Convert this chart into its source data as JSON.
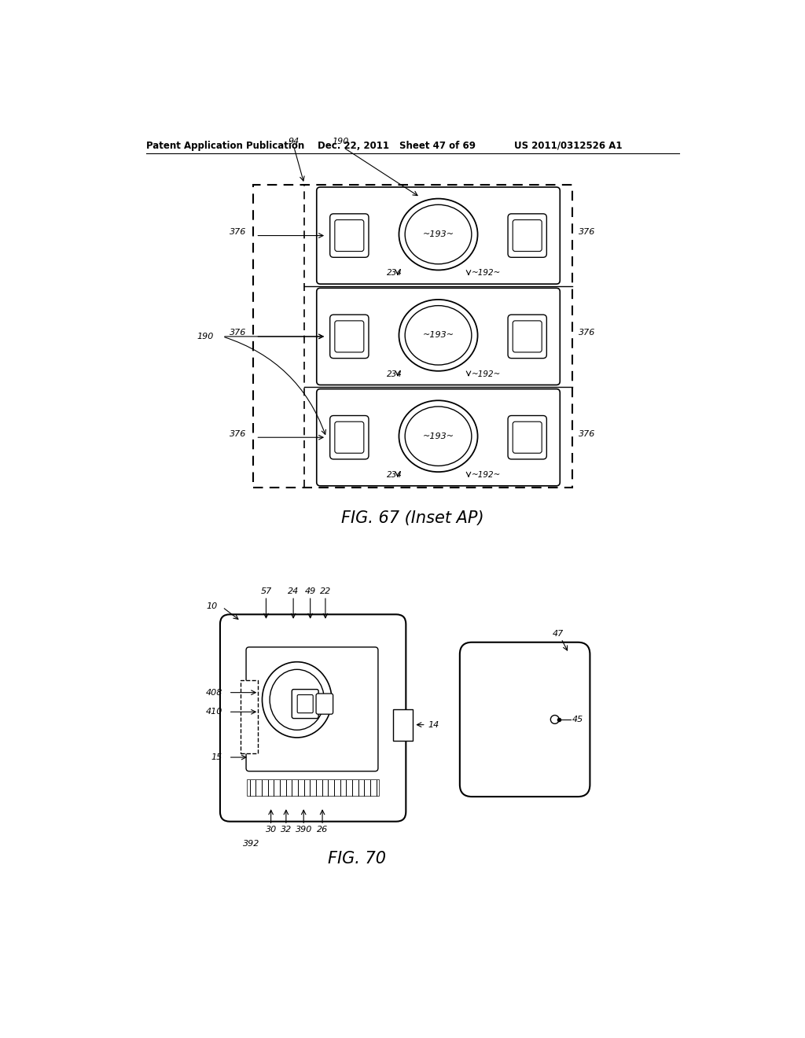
{
  "bg_color": "#ffffff",
  "header_text": "Patent Application Publication",
  "header_date": "Dec. 22, 2011",
  "header_sheet": "Sheet 47 of 69",
  "header_patent": "US 2011/0312526 A1",
  "fig67_title": "FIG. 67 (Inset AP)",
  "fig70_title": "FIG. 70",
  "line_color": "#000000"
}
